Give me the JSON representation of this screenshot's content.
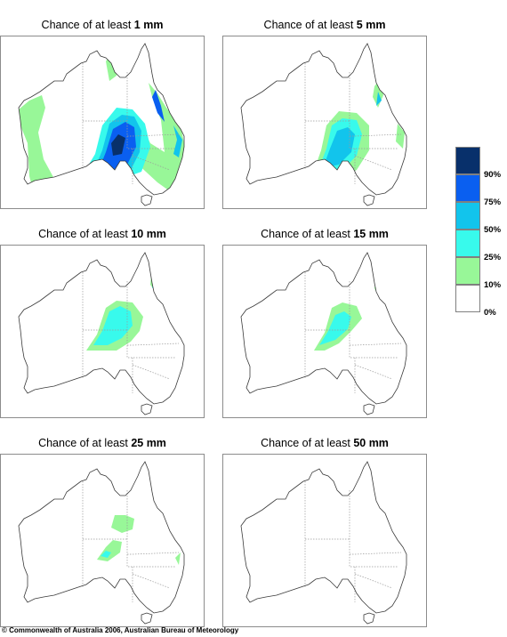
{
  "title_prefix": "Chance of at least",
  "panels": [
    {
      "amount": "1 mm",
      "regions": [
        {
          "c": 1,
          "pts": [
            [
              32,
              157
            ],
            [
              30,
              120
            ],
            [
              22,
              100
            ],
            [
              20,
              82
            ],
            [
              32,
              72
            ],
            [
              46,
              66
            ],
            [
              50,
              80
            ],
            [
              42,
              108
            ],
            [
              48,
              138
            ],
            [
              60,
              160
            ],
            [
              92,
              152
            ],
            [
              104,
              140
            ],
            [
              114,
              106
            ],
            [
              128,
              88
            ],
            [
              146,
              88
            ],
            [
              158,
              100
            ],
            [
              168,
              120
            ],
            [
              184,
              130
            ],
            [
              180,
              94
            ],
            [
              170,
              68
            ],
            [
              166,
              52
            ],
            [
              176,
              64
            ],
            [
              186,
              80
            ],
            [
              202,
              100
            ],
            [
              208,
              130
            ],
            [
              206,
              158
            ],
            [
              190,
              174
            ],
            [
              176,
              164
            ],
            [
              150,
              140
            ],
            [
              128,
              158
            ],
            [
              106,
              170
            ],
            [
              76,
              170
            ],
            [
              50,
              178
            ],
            [
              36,
              172
            ]
          ]
        },
        {
          "c": 1,
          "pts": [
            [
              118,
              28
            ],
            [
              124,
              18
            ],
            [
              134,
              22
            ],
            [
              130,
              44
            ],
            [
              122,
              50
            ]
          ]
        },
        {
          "c": 2,
          "pts": [
            [
              94,
              152
            ],
            [
              106,
              132
            ],
            [
              114,
              100
            ],
            [
              130,
              80
            ],
            [
              148,
              82
            ],
            [
              162,
              98
            ],
            [
              168,
              124
            ],
            [
              158,
              152
            ],
            [
              136,
              160
            ],
            [
              116,
              162
            ],
            [
              98,
              162
            ]
          ]
        },
        {
          "c": 3,
          "pts": [
            [
              104,
              152
            ],
            [
              114,
              128
            ],
            [
              122,
              98
            ],
            [
              136,
              88
            ],
            [
              150,
              90
            ],
            [
              158,
              106
            ],
            [
              156,
              130
            ],
            [
              146,
              150
            ],
            [
              128,
              158
            ],
            [
              110,
              162
            ]
          ]
        },
        {
          "c": 4,
          "pts": [
            [
              110,
              150
            ],
            [
              118,
              130
            ],
            [
              126,
              104
            ],
            [
              140,
              96
            ],
            [
              150,
              102
            ],
            [
              152,
              124
            ],
            [
              142,
              144
            ],
            [
              126,
              152
            ]
          ]
        },
        {
          "c": 5,
          "pts": [
            [
              124,
              120
            ],
            [
              132,
              110
            ],
            [
              140,
              114
            ],
            [
              136,
              132
            ],
            [
              126,
              134
            ]
          ]
        },
        {
          "c": 4,
          "pts": [
            [
              174,
              60
            ],
            [
              180,
              78
            ],
            [
              184,
              96
            ],
            [
              176,
              86
            ],
            [
              170,
              68
            ]
          ]
        },
        {
          "c": 3,
          "pts": [
            [
              194,
              100
            ],
            [
              204,
              116
            ],
            [
              200,
              136
            ],
            [
              194,
              132
            ],
            [
              198,
              116
            ]
          ]
        }
      ]
    },
    {
      "amount": "5 mm",
      "regions": [
        {
          "c": 1,
          "pts": [
            [
              100,
              156
            ],
            [
              110,
              128
            ],
            [
              116,
              100
            ],
            [
              130,
              84
            ],
            [
              150,
              86
            ],
            [
              164,
              100
            ],
            [
              164,
              128
            ],
            [
              150,
              150
            ],
            [
              130,
              162
            ],
            [
              108,
              162
            ]
          ]
        },
        {
          "c": 2,
          "pts": [
            [
              106,
              152
            ],
            [
              116,
              126
            ],
            [
              122,
              100
            ],
            [
              134,
              92
            ],
            [
              150,
              94
            ],
            [
              156,
              110
            ],
            [
              150,
              134
            ],
            [
              134,
              150
            ],
            [
              116,
              158
            ]
          ]
        },
        {
          "c": 3,
          "pts": [
            [
              112,
              148
            ],
            [
              120,
              126
            ],
            [
              128,
              106
            ],
            [
              140,
              102
            ],
            [
              148,
              110
            ],
            [
              144,
              130
            ],
            [
              130,
              144
            ]
          ]
        },
        {
          "c": 1,
          "pts": [
            [
              170,
              56
            ],
            [
              176,
              48
            ],
            [
              180,
              66
            ],
            [
              174,
              80
            ],
            [
              168,
              68
            ]
          ]
        },
        {
          "c": 3,
          "pts": [
            [
              174,
              62
            ],
            [
              178,
              72
            ],
            [
              172,
              78
            ]
          ]
        },
        {
          "c": 1,
          "pts": [
            [
              196,
              98
            ],
            [
              204,
              108
            ],
            [
              202,
              126
            ],
            [
              194,
              118
            ]
          ]
        }
      ]
    },
    {
      "amount": "10 mm",
      "regions": [
        {
          "c": 1,
          "pts": [
            [
              96,
              118
            ],
            [
              108,
              100
            ],
            [
              118,
              70
            ],
            [
              130,
              62
            ],
            [
              148,
              64
            ],
            [
              160,
              80
            ],
            [
              156,
              96
            ],
            [
              146,
              108
            ],
            [
              130,
              118
            ],
            [
              116,
              118
            ]
          ]
        },
        {
          "c": 2,
          "pts": [
            [
              104,
              112
            ],
            [
              114,
              96
            ],
            [
              122,
              74
            ],
            [
              134,
              68
            ],
            [
              146,
              74
            ],
            [
              148,
              90
            ],
            [
              136,
              104
            ],
            [
              120,
              112
            ]
          ]
        },
        {
          "c": 1,
          "pts": [
            [
              170,
              24
            ],
            [
              176,
              36
            ],
            [
              174,
              52
            ],
            [
              168,
              44
            ]
          ]
        },
        {
          "c": 2,
          "pts": [
            [
              172,
              34
            ],
            [
              176,
              44
            ],
            [
              170,
              48
            ]
          ]
        },
        {
          "c": 1,
          "pts": [
            [
              194,
              62
            ],
            [
              200,
              72
            ],
            [
              198,
              86
            ],
            [
              192,
              76
            ]
          ]
        }
      ]
    },
    {
      "amount": "15 mm",
      "regions": [
        {
          "c": 1,
          "pts": [
            [
              102,
              118
            ],
            [
              114,
              98
            ],
            [
              122,
              70
            ],
            [
              134,
              64
            ],
            [
              150,
              68
            ],
            [
              156,
              82
            ],
            [
              144,
              96
            ],
            [
              130,
              110
            ],
            [
              114,
              118
            ]
          ]
        },
        {
          "c": 2,
          "pts": [
            [
              108,
              112
            ],
            [
              118,
              96
            ],
            [
              126,
              78
            ],
            [
              136,
              74
            ],
            [
              144,
              80
            ],
            [
              140,
              94
            ],
            [
              126,
              106
            ]
          ]
        },
        {
          "c": 1,
          "pts": [
            [
              172,
              36
            ],
            [
              178,
              48
            ],
            [
              174,
              56
            ],
            [
              170,
              48
            ]
          ]
        },
        {
          "c": 1,
          "pts": [
            [
              194,
              70
            ],
            [
              200,
              80
            ],
            [
              196,
              90
            ]
          ]
        }
      ]
    },
    {
      "amount": "25 mm",
      "regions": [
        {
          "c": 1,
          "pts": [
            [
              108,
              118
            ],
            [
              118,
              104
            ],
            [
              126,
              96
            ],
            [
              136,
              98
            ],
            [
              134,
              110
            ],
            [
              120,
              120
            ]
          ]
        },
        {
          "c": 1,
          "pts": [
            [
              124,
              82
            ],
            [
              128,
              68
            ],
            [
              140,
              68
            ],
            [
              150,
              72
            ],
            [
              148,
              84
            ],
            [
              136,
              88
            ]
          ]
        },
        {
          "c": 2,
          "pts": [
            [
              112,
              114
            ],
            [
              118,
              108
            ],
            [
              124,
              110
            ],
            [
              120,
              116
            ]
          ]
        },
        {
          "c": 1,
          "pts": [
            [
              196,
              116
            ],
            [
              202,
              110
            ],
            [
              200,
              124
            ]
          ]
        }
      ]
    },
    {
      "amount": "50 mm",
      "regions": []
    }
  ],
  "legend": {
    "colors": [
      "#08306b",
      "#0a5ff0",
      "#12c4ec",
      "#38faec",
      "#98f798",
      "#ffffff"
    ],
    "labels": [
      "90%",
      "75%",
      "50%",
      "25%",
      "10%",
      "0%"
    ]
  },
  "copyright": "© Commonwealth of Australia 2006, Australian Bureau of Meteorology"
}
